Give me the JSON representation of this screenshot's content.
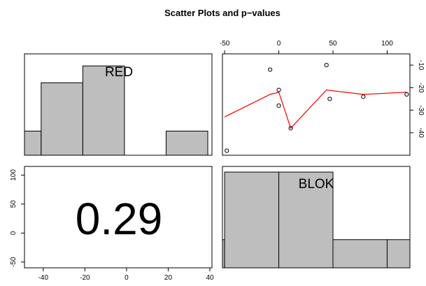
{
  "title": "Scatter Plots and p−values",
  "colors": {
    "bars": "#bebebe",
    "smooth": "#ff0000",
    "axis": "#000000"
  },
  "chart_data": [
    {
      "type": "bar",
      "panel": "histogram",
      "label": "RED",
      "bins": [
        {
          "from": -50,
          "to": -40,
          "height": 1
        },
        {
          "from": -40,
          "to": -20,
          "height": 3
        },
        {
          "from": -20,
          "to": 0,
          "height": 3.7
        },
        {
          "from": 0,
          "to": 20,
          "height": 0
        },
        {
          "from": 20,
          "to": 40,
          "height": 1
        }
      ],
      "xlim": [
        -48,
        42
      ],
      "ylim": [
        0,
        4.2
      ]
    },
    {
      "type": "scatter",
      "panel": "scatter",
      "x": [
        -48,
        -8,
        0,
        0,
        11,
        44,
        47,
        78,
        118
      ],
      "y": [
        -48,
        -12,
        -28,
        -21,
        -38,
        -10,
        -25,
        -24,
        -23
      ],
      "smooth": {
        "x": [
          -50,
          -8,
          0,
          11,
          44,
          78,
          118
        ],
        "y": [
          -33,
          -23,
          -22,
          -38,
          -21,
          -23,
          -22
        ]
      },
      "xticks": [
        -50,
        0,
        50,
        100
      ],
      "yticks": [
        -40,
        -30,
        -20,
        -10
      ],
      "xlim": [
        -52,
        121
      ],
      "ylim": [
        -50,
        -5
      ]
    },
    {
      "type": "table",
      "panel": "correlation",
      "value": "0.29",
      "xticks": [
        -40,
        -20,
        0,
        20,
        40
      ],
      "yticks": [
        -50,
        0,
        50,
        100
      ],
      "xlim": [
        -49,
        41
      ],
      "ylim": [
        -60,
        115
      ]
    },
    {
      "type": "bar",
      "panel": "histogram",
      "label": "BLOK",
      "bins": [
        {
          "from": -100,
          "to": -50,
          "height": 1
        },
        {
          "from": -50,
          "to": 0,
          "height": 3.4
        },
        {
          "from": 0,
          "to": 50,
          "height": 3.4
        },
        {
          "from": 50,
          "to": 100,
          "height": 1
        },
        {
          "from": 100,
          "to": 150,
          "height": 1
        }
      ],
      "xlim": [
        -52,
        121
      ],
      "ylim": [
        0,
        3.6
      ]
    }
  ]
}
